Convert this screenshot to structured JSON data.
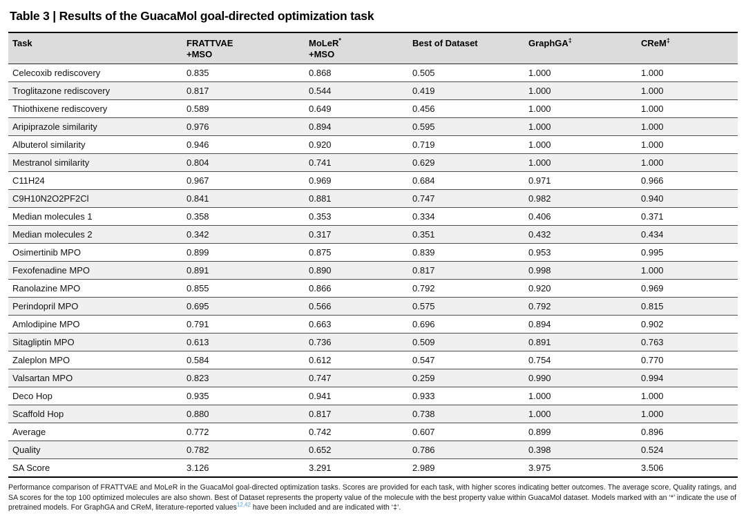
{
  "title": "Table 3 | Results of the GuacaMol goal-directed optimization task",
  "colors": {
    "header_background": "#dcdcdc",
    "alt_row_background": "#f0f0f0",
    "row_separator": "#4d4d4d",
    "table_border": "#000000",
    "citation_link_blue": "#4f9bd4",
    "body_text": "#111111"
  },
  "table": {
    "columns": [
      {
        "line1": "Task",
        "sup": "",
        "line2": ""
      },
      {
        "line1": "FRATTVAE",
        "sup": "",
        "line2": "+MSO"
      },
      {
        "line1": "MoLeR",
        "sup": "*",
        "line2": "+MSO"
      },
      {
        "line1": "Best of Dataset",
        "sup": "",
        "line2": ""
      },
      {
        "line1": "GraphGA",
        "sup": "‡",
        "line2": ""
      },
      {
        "line1": "CReM",
        "sup": "‡",
        "line2": ""
      }
    ],
    "rows": [
      {
        "task": "Celecoxib rediscovery",
        "values": [
          "0.835",
          "0.868",
          "0.505",
          "1.000",
          "1.000"
        ]
      },
      {
        "task": "Troglitazone rediscovery",
        "values": [
          "0.817",
          "0.544",
          "0.419",
          "1.000",
          "1.000"
        ]
      },
      {
        "task": "Thiothixene rediscovery",
        "values": [
          "0.589",
          "0.649",
          "0.456",
          "1.000",
          "1.000"
        ]
      },
      {
        "task": "Aripiprazole similarity",
        "values": [
          "0.976",
          "0.894",
          "0.595",
          "1.000",
          "1.000"
        ]
      },
      {
        "task": "Albuterol similarity",
        "values": [
          "0.946",
          "0.920",
          "0.719",
          "1.000",
          "1.000"
        ]
      },
      {
        "task": "Mestranol similarity",
        "values": [
          "0.804",
          "0.741",
          "0.629",
          "1.000",
          "1.000"
        ]
      },
      {
        "task": "C11H24",
        "values": [
          "0.967",
          "0.969",
          "0.684",
          "0.971",
          "0.966"
        ]
      },
      {
        "task": "C9H10N2O2PF2Cl",
        "values": [
          "0.841",
          "0.881",
          "0.747",
          "0.982",
          "0.940"
        ]
      },
      {
        "task": "Median molecules 1",
        "values": [
          "0.358",
          "0.353",
          "0.334",
          "0.406",
          "0.371"
        ]
      },
      {
        "task": "Median molecules 2",
        "values": [
          "0.342",
          "0.317",
          "0.351",
          "0.432",
          "0.434"
        ]
      },
      {
        "task": "Osimertinib MPO",
        "values": [
          "0.899",
          "0.875",
          "0.839",
          "0.953",
          "0.995"
        ]
      },
      {
        "task": "Fexofenadine MPO",
        "values": [
          "0.891",
          "0.890",
          "0.817",
          "0.998",
          "1.000"
        ]
      },
      {
        "task": "Ranolazine MPO",
        "values": [
          "0.855",
          "0.866",
          "0.792",
          "0.920",
          "0.969"
        ]
      },
      {
        "task": "Perindopril MPO",
        "values": [
          "0.695",
          "0.566",
          "0.575",
          "0.792",
          "0.815"
        ]
      },
      {
        "task": "Amlodipine MPO",
        "values": [
          "0.791",
          "0.663",
          "0.696",
          "0.894",
          "0.902"
        ]
      },
      {
        "task": "Sitagliptin MPO",
        "values": [
          "0.613",
          "0.736",
          "0.509",
          "0.891",
          "0.763"
        ]
      },
      {
        "task": "Zaleplon MPO",
        "values": [
          "0.584",
          "0.612",
          "0.547",
          "0.754",
          "0.770"
        ]
      },
      {
        "task": "Valsartan MPO",
        "values": [
          "0.823",
          "0.747",
          "0.259",
          "0.990",
          "0.994"
        ]
      },
      {
        "task": "Deco Hop",
        "values": [
          "0.935",
          "0.941",
          "0.933",
          "1.000",
          "1.000"
        ]
      },
      {
        "task": "Scaffold Hop",
        "values": [
          "0.880",
          "0.817",
          "0.738",
          "1.000",
          "1.000"
        ]
      },
      {
        "task": "Average",
        "values": [
          "0.772",
          "0.742",
          "0.607",
          "0.899",
          "0.896"
        ]
      },
      {
        "task": "Quality",
        "values": [
          "0.782",
          "0.652",
          "0.786",
          "0.398",
          "0.524"
        ]
      },
      {
        "task": "SA Score",
        "values": [
          "3.126",
          "3.291",
          "2.989",
          "3.975",
          "3.506"
        ]
      }
    ]
  },
  "footnote": {
    "text_before_refs": "Performance comparison of FRATTVAE and MoLeR in the GuacaMol goal-directed optimization tasks. Scores are provided for each task, with higher scores indicating better outcomes. The average score, Quality ratings, and SA scores for the top 100 optimized molecules are also shown. Best of Dataset represents the property value of the molecule with the best property value within GuacaMol dataset. Models marked with an ‘*’ indicate the use of pretrained models. For GraphGA and CReM, literature-reported values",
    "reference_numbers": "12,42",
    "text_after_refs": " have been included and are indicated with ‘‡’."
  }
}
